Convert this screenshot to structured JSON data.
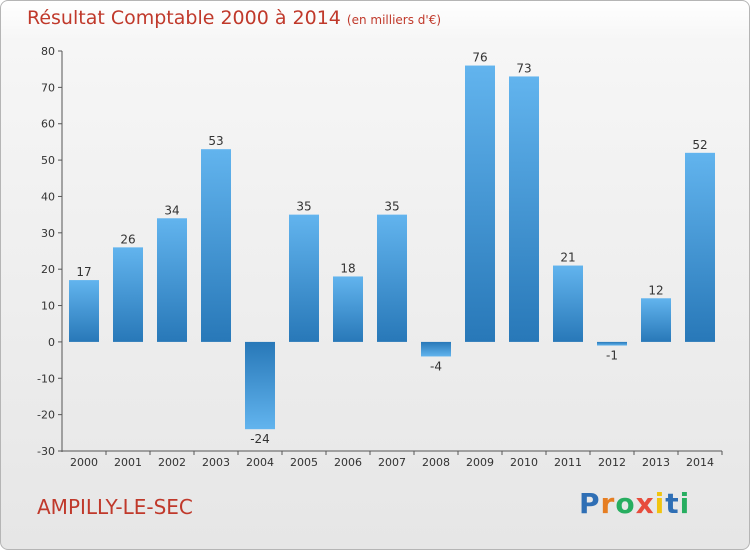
{
  "header": {
    "title": "Résultat Comptable 2000 à 2014",
    "subtitle": "(en milliers d'€)"
  },
  "footer": {
    "commune": "AMPILLY-LE-SEC",
    "logo_letters": [
      {
        "ch": "P",
        "color": "#2f6fb5"
      },
      {
        "ch": "r",
        "color": "#e67e22"
      },
      {
        "ch": "o",
        "color": "#27ae60"
      },
      {
        "ch": "x",
        "color": "#e74c3c"
      },
      {
        "ch": "i",
        "color": "#f1c40f"
      },
      {
        "ch": "t",
        "color": "#2f6fb5"
      },
      {
        "ch": "i",
        "color": "#27ae60"
      }
    ]
  },
  "colors": {
    "bar_light": "#62b4ee",
    "bar_dark": "#2878b8",
    "title": "#c0392b"
  },
  "chart_data": {
    "type": "bar",
    "categories": [
      "2000",
      "2001",
      "2002",
      "2003",
      "2004",
      "2005",
      "2006",
      "2007",
      "2008",
      "2009",
      "2010",
      "2011",
      "2012",
      "2013",
      "2014"
    ],
    "values": [
      17,
      26,
      34,
      53,
      -24,
      35,
      18,
      35,
      -4,
      76,
      73,
      21,
      -1,
      12,
      52
    ],
    "ylim": [
      -30,
      80
    ],
    "yticks": [
      -30,
      -20,
      -10,
      0,
      10,
      20,
      30,
      40,
      50,
      60,
      70,
      80
    ],
    "grid": false
  }
}
